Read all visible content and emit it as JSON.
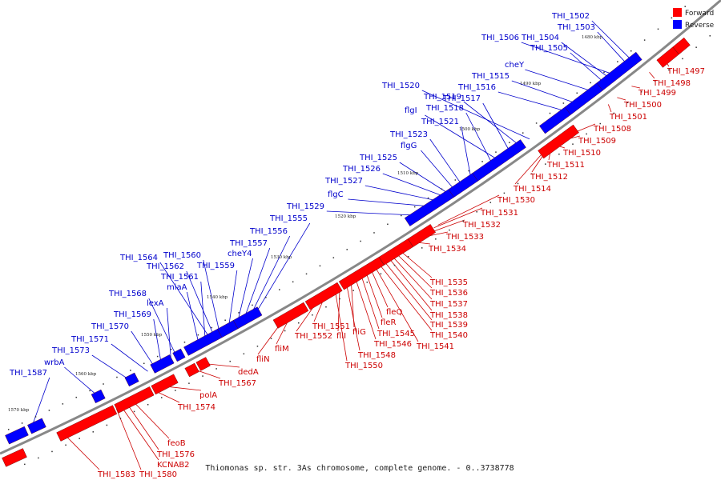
{
  "caption": "Thiomonas sp. str. 3As chromosome, complete genome. - 0..3738778",
  "legend": [
    {
      "label": "Forward",
      "color": "#ff0000"
    },
    {
      "label": "Reverse",
      "color": "#0000ff"
    }
  ],
  "colors": {
    "forward": "#ff0000",
    "reverse": "#0000ff",
    "forward_line": "#cc0000",
    "reverse_line": "#0000cc",
    "backbone": "#888888"
  },
  "ticks": [
    "1570 kbp",
    "1560 kbp",
    "1550 kbp",
    "1540 kbp",
    "1530 kbp",
    "1520 kbp",
    "1510 kbp",
    "1500 kbp",
    "1490 kbp",
    "1480 kbp"
  ],
  "forward_labels": [
    "THI_1497",
    "THI_1498",
    "THI_1499",
    "THI_1500",
    "THI_1501",
    "THI_1508",
    "THI_1509",
    "THI_1510",
    "THI_1511",
    "THI_1512",
    "THI_1514",
    "THI_1530",
    "THI_1531",
    "THI_1532",
    "THI_1533",
    "THI_1534",
    "THI_1535",
    "THI_1536",
    "THI_1537",
    "THI_1538",
    "THI_1539",
    "THI_1540",
    "THI_1541",
    "fleQ",
    "fleR",
    "THI_1545",
    "THI_1546",
    "fliG",
    "THI_1548",
    "fliI",
    "THI_1550",
    "THI_1551",
    "THI_1552",
    "fliM",
    "fliN",
    "dedA",
    "THI_1567",
    "polA",
    "THI_1574",
    "feoB",
    "THI_1576",
    "KCNAB2",
    "THI_1580",
    "THI_1583"
  ],
  "reverse_labels": [
    "THI_1502",
    "THI_1503",
    "THI_1506",
    "THI_1504",
    "THI_1505",
    "cheY",
    "THI_1515",
    "THI_1516",
    "THI_1520",
    "THI_1519",
    "THI_1517",
    "flgI",
    "THI_1518",
    "THI_1521",
    "THI_1523",
    "flgG",
    "THI_1525",
    "THI_1526",
    "THI_1527",
    "flgC",
    "THI_1529",
    "THI_1555",
    "THI_1556",
    "THI_1557",
    "cheY4",
    "THI_1564",
    "THI_1560",
    "THI_1562",
    "THI_1559",
    "THI_1561",
    "miaA",
    "THI_1568",
    "lexA",
    "THI_1569",
    "THI_1570",
    "THI_1571",
    "THI_1573",
    "wrbA",
    "THI_1587"
  ]
}
